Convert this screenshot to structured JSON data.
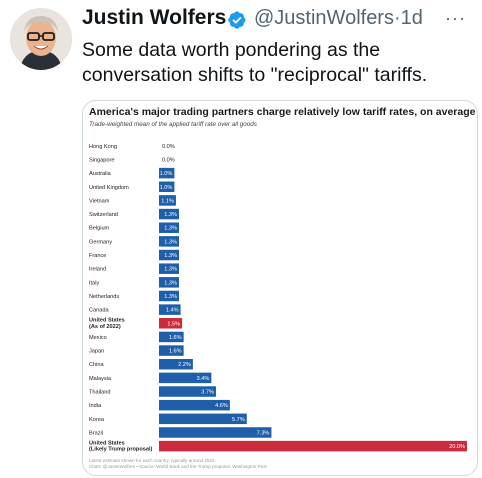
{
  "tweet": {
    "author_name": "Justin Wolfers",
    "handle": "@JustinWolfers",
    "separator": "·",
    "time": "1d",
    "more_label": "···",
    "text": "Some data worth pondering as the conversation shifts to \"reciprocal\" tariffs."
  },
  "colors": {
    "bar_blue": "#1f5ea8",
    "bar_red": "#cc2b3b",
    "verified_blue": "#1d9bf0"
  },
  "chart_data": {
    "type": "bar",
    "orientation": "horizontal",
    "title": "America's major trading partners charge relatively low tariff rates, on average",
    "subtitle": "Trade-weighted mean of the applied tariff rate over all goods",
    "xlim": [
      0,
      20
    ],
    "unit": "%",
    "categories": [
      "Hong Kong",
      "Singapore",
      "Australia",
      "United Kingdom",
      "Vietnam",
      "Switzerland",
      "Belgium",
      "Germany",
      "France",
      "Ireland",
      "Italy",
      "Netherlands",
      "Canada",
      "United States (As of 2022)",
      "Mexico",
      "Japan",
      "China",
      "Malaysia",
      "Thailand",
      "India",
      "Korea",
      "Brazil",
      "United States (Likely Trump proposal)"
    ],
    "label_lines": [
      [
        "Hong Kong"
      ],
      [
        "Singapore"
      ],
      [
        "Australia"
      ],
      [
        "United Kingdom"
      ],
      [
        "Vietnam"
      ],
      [
        "Switzerland"
      ],
      [
        "Belgium"
      ],
      [
        "Germany"
      ],
      [
        "France"
      ],
      [
        "Ireland"
      ],
      [
        "Italy"
      ],
      [
        "Netherlands"
      ],
      [
        "Canada"
      ],
      [
        "United States",
        "(As of 2022)"
      ],
      [
        "Mexico"
      ],
      [
        "Japan"
      ],
      [
        "China"
      ],
      [
        "Malaysia"
      ],
      [
        "Thailand"
      ],
      [
        "India"
      ],
      [
        "Korea"
      ],
      [
        "Brazil"
      ],
      [
        "United States",
        "(Likely Trump proposal)"
      ]
    ],
    "values": [
      0.0,
      0.0,
      1.0,
      1.0,
      1.1,
      1.3,
      1.3,
      1.3,
      1.3,
      1.3,
      1.3,
      1.3,
      1.4,
      1.5,
      1.6,
      1.6,
      2.2,
      3.4,
      3.7,
      4.6,
      5.7,
      7.3,
      20.0
    ],
    "value_labels": [
      "0.0%",
      "0.0%",
      "1.0%",
      "1.0%",
      "1.1%",
      "1.3%",
      "1.3%",
      "1.3%",
      "1.3%",
      "1.3%",
      "1.3%",
      "1.3%",
      "1.4%",
      "1.5%",
      "1.6%",
      "1.6%",
      "2.2%",
      "3.4%",
      "3.7%",
      "4.6%",
      "5.7%",
      "7.3%",
      "20.0%"
    ],
    "highlight": [
      false,
      false,
      false,
      false,
      false,
      false,
      false,
      false,
      false,
      false,
      false,
      false,
      false,
      true,
      false,
      false,
      false,
      false,
      false,
      false,
      false,
      false,
      true
    ],
    "bold_label": [
      false,
      false,
      false,
      false,
      false,
      false,
      false,
      false,
      false,
      false,
      false,
      false,
      false,
      true,
      false,
      false,
      false,
      false,
      false,
      false,
      false,
      false,
      true
    ],
    "footnotes": [
      "Latest estimate shown for each country, typically around 2022.",
      "Chart: @JustinWolfers • Source: World Bank and the Trump proposal, Washington Post"
    ]
  }
}
